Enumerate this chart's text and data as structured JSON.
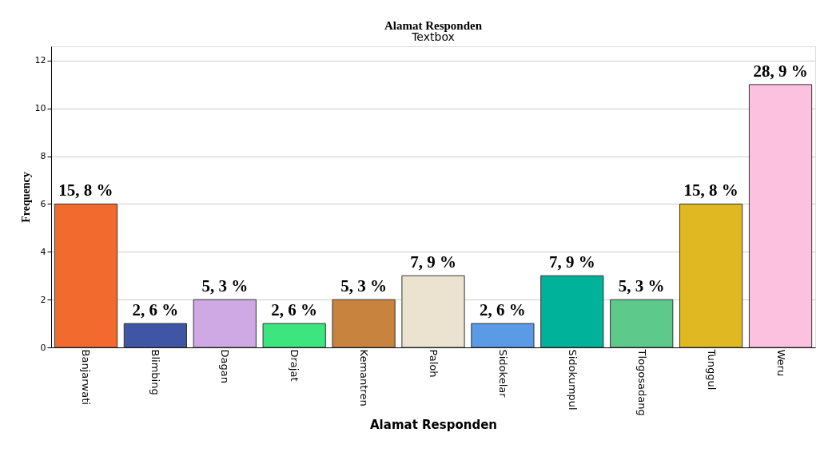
{
  "chart_data": {
    "type": "bar",
    "title": "Alamat Responden",
    "subtitle": "Textbox",
    "xlabel": "Alamat Responden",
    "ylabel": "Frequency",
    "categories": [
      "Banjarwati",
      "Blimbing",
      "Dagan",
      "Drajat",
      "Kemantren",
      "Paloh",
      "Sidokelar",
      "Sidokumpul",
      "Tlogosadang",
      "Tunggul",
      "Weru"
    ],
    "values": [
      6,
      1,
      2,
      1,
      2,
      3,
      1,
      3,
      2,
      6,
      11
    ],
    "colors": [
      "#f26a2e",
      "#3f56a6",
      "#cfa9e4",
      "#3de57e",
      "#c8833f",
      "#ebe3cf",
      "#5a9ae6",
      "#00b29a",
      "#5dc98a",
      "#e0b822",
      "#fdc1e0"
    ],
    "annotations": [
      {
        "text": "15, 8 %",
        "x": "Banjarwati",
        "y": 6
      },
      {
        "text": "2, 6 %",
        "x": "Blimbing",
        "y": 1
      },
      {
        "text": "5, 3 %",
        "x": "Dagan",
        "y": 2
      },
      {
        "text": "2, 6 %",
        "x": "Drajat",
        "y": 1
      },
      {
        "text": "5, 3 %",
        "x": "Kemantren",
        "y": 2
      },
      {
        "text": "7, 9 %",
        "x": "Paloh",
        "y": 3
      },
      {
        "text": "2, 6 %",
        "x": "Sidokelar",
        "y": 1
      },
      {
        "text": "7, 9 %",
        "x": "Sidokumpul",
        "y": 3
      },
      {
        "text": "5, 3 %",
        "x": "Tlogosadang",
        "y": 2
      },
      {
        "text": "15, 8 %",
        "x": "Tunggul",
        "y": 6
      },
      {
        "text": "28, 9 %",
        "x": "Weru",
        "y": 11
      }
    ],
    "ylim": [
      0,
      12.6
    ],
    "yticks": [
      0,
      2,
      4,
      6,
      8,
      10,
      12
    ],
    "grid": "y",
    "legend": false
  }
}
